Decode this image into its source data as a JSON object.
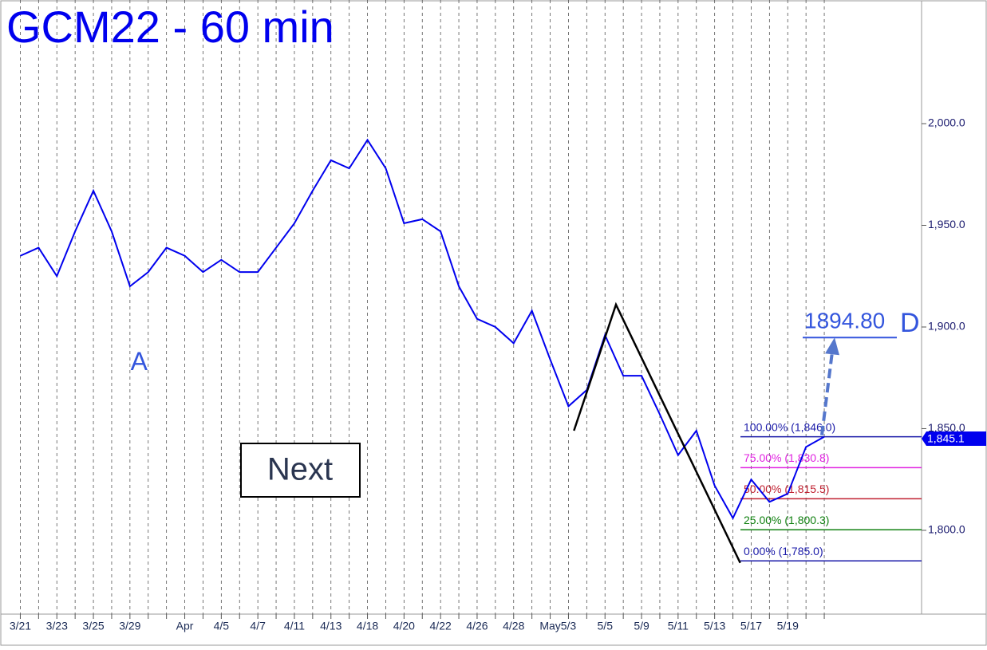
{
  "chart_data": {
    "type": "line",
    "title": "GCM22 - 60 min",
    "color": "#0000ee",
    "categories": [
      "3/21",
      null,
      "3/23",
      null,
      "3/25",
      null,
      "3/29",
      null,
      null,
      "Apr",
      null,
      "4/5",
      null,
      "4/7",
      null,
      "4/11",
      null,
      "4/13",
      null,
      "4/18",
      null,
      "4/20",
      null,
      "4/22",
      null,
      "4/26",
      null,
      "4/28",
      null,
      "May",
      "5/3",
      null,
      "5/5",
      null,
      "5/9",
      null,
      "5/11",
      null,
      "5/13",
      null,
      "5/17",
      null,
      "5/19",
      null,
      null
    ],
    "values": [
      1935,
      1939,
      1925,
      1947,
      1967,
      1947,
      1920,
      1927,
      1939,
      1935,
      1927,
      1933,
      1927,
      1927,
      1939,
      1951,
      1967,
      1982,
      1978,
      1992,
      1978,
      1951,
      1953,
      1947,
      1920,
      1904,
      1900,
      1892,
      1908,
      1884,
      1861,
      1869,
      1896,
      1876,
      1876,
      1857,
      1837,
      1849,
      1822,
      1806,
      1825,
      1814,
      1818,
      1841,
      1846
    ],
    "ylim": [
      1758.8,
      2060.8
    ],
    "yticks": [
      {
        "value": 1800,
        "label": "1,800.0"
      },
      {
        "value": 1850,
        "label": "1,850.0"
      },
      {
        "value": 1900,
        "label": "1,900.0"
      },
      {
        "value": 1950,
        "label": "1,950.0"
      },
      {
        "value": 2000,
        "label": "2,000.0"
      }
    ],
    "grid": true,
    "fib_levels": [
      {
        "label": "100.00% (1,846.0)",
        "value": 1846.0,
        "color": "#1a1aa8"
      },
      {
        "label": "75.00% (1,830.8)",
        "value": 1830.8,
        "color": "#e020e0"
      },
      {
        "label": "50.00% (1,815.5)",
        "value": 1815.5,
        "color": "#c02030"
      },
      {
        "label": "25.00% (1,800.3)",
        "value": 1800.3,
        "color": "#108010"
      },
      {
        "label": "0.00% (1,785.0)",
        "value": 1785.0,
        "color": "#1a1aa8"
      }
    ],
    "pattern": {
      "x": [
        30.3,
        32.6,
        39.4
      ],
      "values": [
        1849,
        1911,
        1784
      ],
      "color": "#000000"
    },
    "annotation": {
      "label": "A",
      "x": 6.5,
      "value": 1895
    },
    "target": {
      "label": "1894.80",
      "point": "D",
      "value": 1894.8,
      "color": "#3355dd"
    },
    "last_price": {
      "value": 1845.1,
      "label": "1,845.1"
    }
  },
  "button": {
    "label": "Next"
  }
}
